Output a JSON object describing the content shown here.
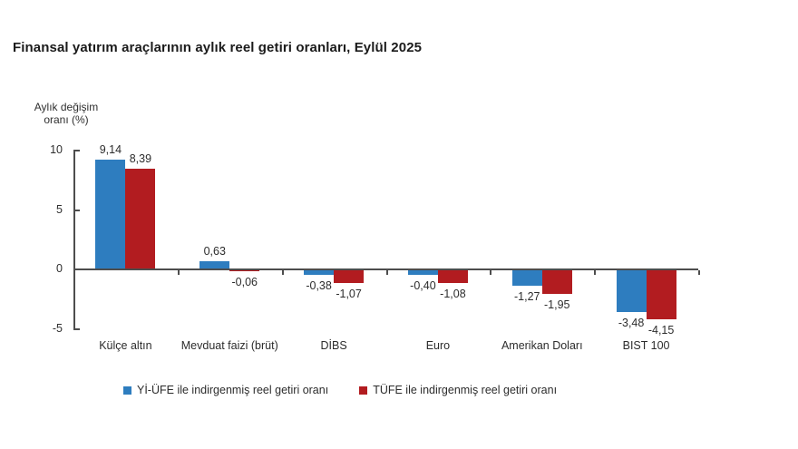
{
  "page": {
    "background_color": "#ffffff"
  },
  "chart_data": {
    "type": "bar",
    "title": "Finansal yatırım araçlarının aylık reel getiri oranları, Eylül 2025",
    "ylabel": "Aylık değişim\noranı (%)",
    "xlabel": "",
    "categories": [
      "Külçe altın",
      "Mevduat faizi (brüt)",
      "DİBS",
      "Euro",
      "Amerikan Doları",
      "BIST 100"
    ],
    "series": [
      {
        "name": "Yİ-ÜFE ile indirgenmiş reel getiri oranı",
        "color": "#2e7dbf",
        "values": [
          9.14,
          0.63,
          -0.38,
          -0.4,
          -1.27,
          -3.48
        ]
      },
      {
        "name": "TÜFE ile indirgenmiş reel getiri oranı",
        "color": "#b21c20",
        "values": [
          8.39,
          -0.06,
          -1.07,
          -1.08,
          -1.95,
          -4.15
        ]
      }
    ],
    "value_labels": [
      [
        "9,14",
        "0,63",
        "-0,38",
        "-0,40",
        "-1,27",
        "-3,48"
      ],
      [
        "8,39",
        "-0,06",
        "-1,07",
        "-1,08",
        "-1,95",
        "-4,15"
      ]
    ],
    "ylim": [
      -5,
      10
    ],
    "yticks": [
      10,
      5,
      0,
      -5
    ],
    "grid": false,
    "legend_position": "bottom",
    "decimal_separator": ",",
    "axis_color": "#4d4d4d"
  }
}
